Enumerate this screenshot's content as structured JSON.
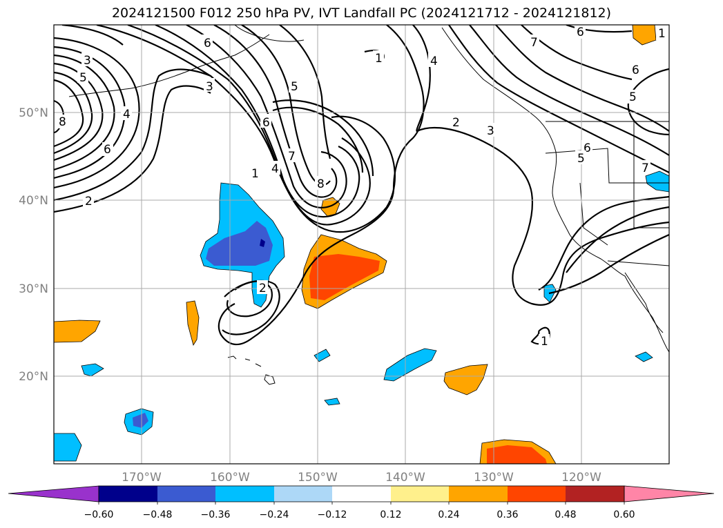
{
  "title": "2024121500 F012 250 hPa PV, IVT Landfall PC (2024121712 - 2024121812)",
  "lat_labels": [
    "50°N",
    "40°N",
    "30°N",
    "20°N"
  ],
  "lon_labels": [
    "170°W",
    "160°W",
    "150°W",
    "140°W",
    "130°W",
    "120°W"
  ],
  "contour_labels": [
    "3",
    "5",
    "6",
    "8",
    "4",
    "2",
    "6",
    "3",
    "5",
    "6",
    "7",
    "4",
    "1",
    "8",
    "2",
    "1",
    "4",
    "2",
    "3",
    "6",
    "5",
    "6",
    "7",
    "1",
    "6",
    "7",
    "5",
    "1"
  ],
  "colorbar": {
    "colors": [
      "#9932cc",
      "#00008b",
      "#3b5bd1",
      "#00bfff",
      "#add8f7",
      "#ffffff",
      "#fff08c",
      "#ffa500",
      "#ff4500",
      "#b22222",
      "#ff85a7"
    ],
    "tick_labels": [
      "−0.60",
      "−0.48",
      "−0.36",
      "−0.24",
      "−0.12",
      "0.12",
      "0.24",
      "0.36",
      "0.48",
      "0.60"
    ]
  }
}
